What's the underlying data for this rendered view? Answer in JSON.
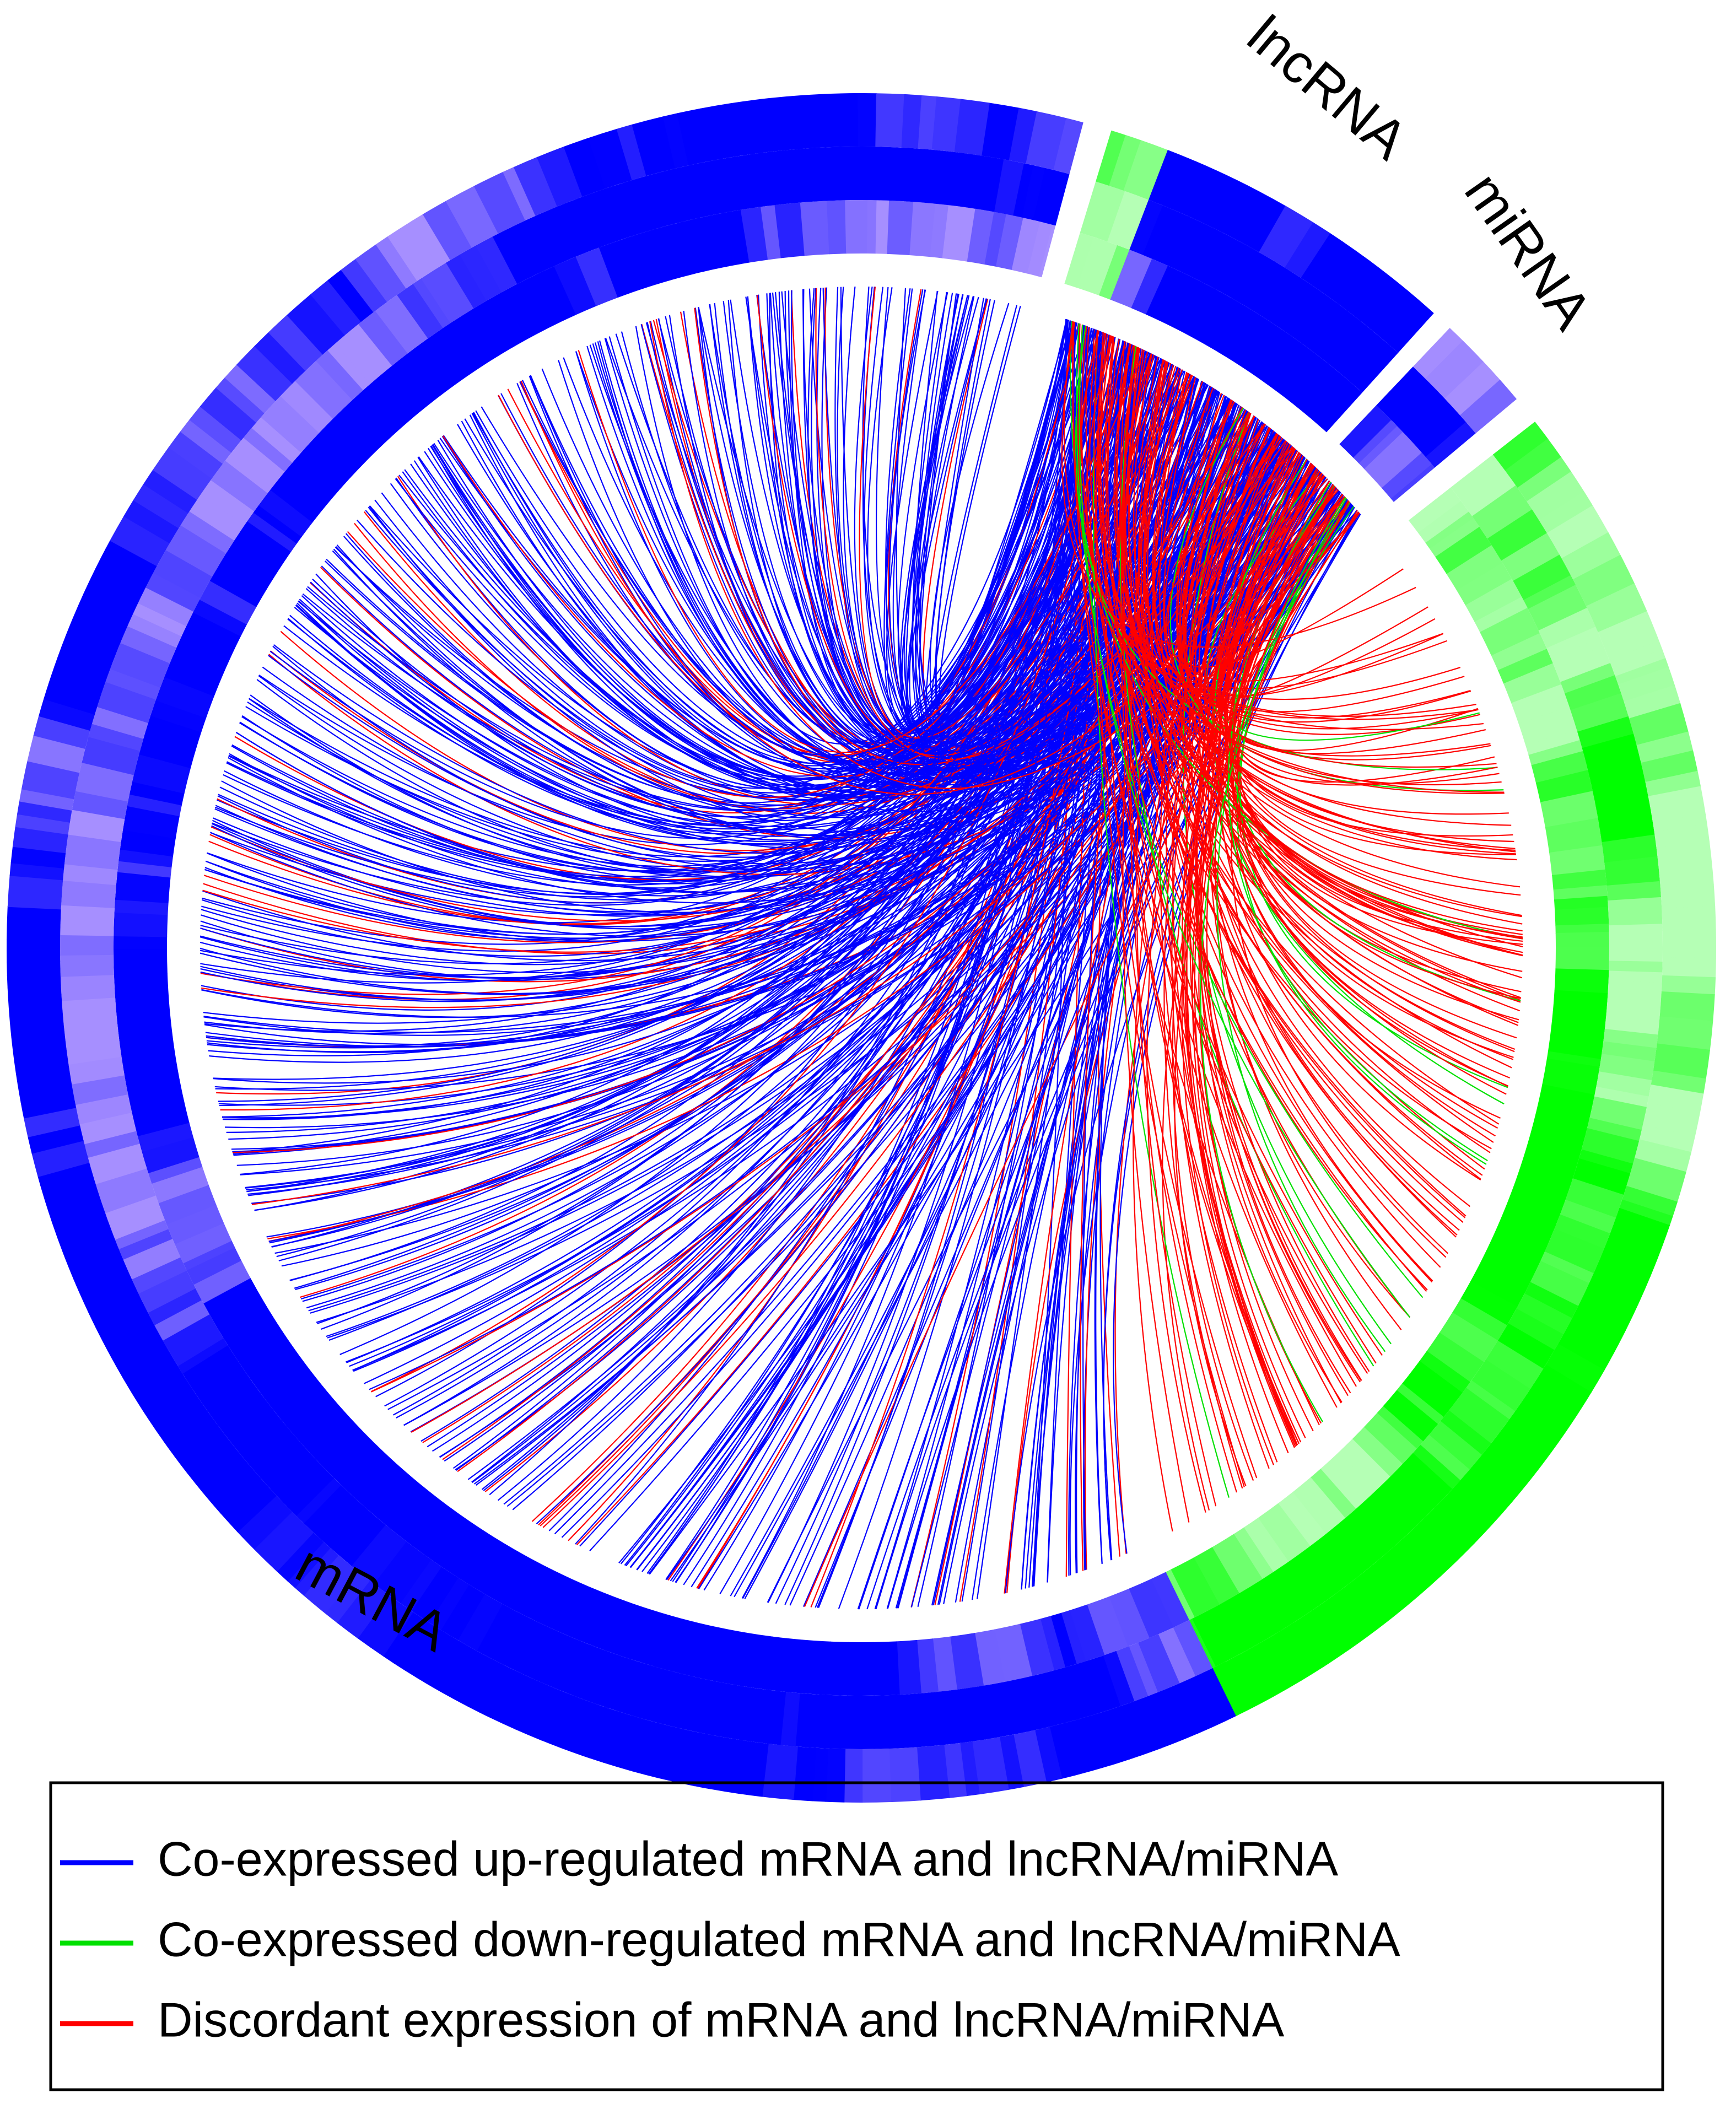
{
  "labels": {
    "lncrna": "lncRNA",
    "mirna": "miRNA",
    "mrna": "mRNA"
  },
  "legend": [
    {
      "label": "Co-expressed up-regulated mRNA and lncRNA/miRNA",
      "color": "#0000ff"
    },
    {
      "label": "Co-expressed down-regulated mRNA and lncRNA/miRNA",
      "color": "#00e000"
    },
    {
      "label": "Discordant expression of mRNA and lncRNA/miRNA",
      "color": "#ff0000"
    }
  ]
}
